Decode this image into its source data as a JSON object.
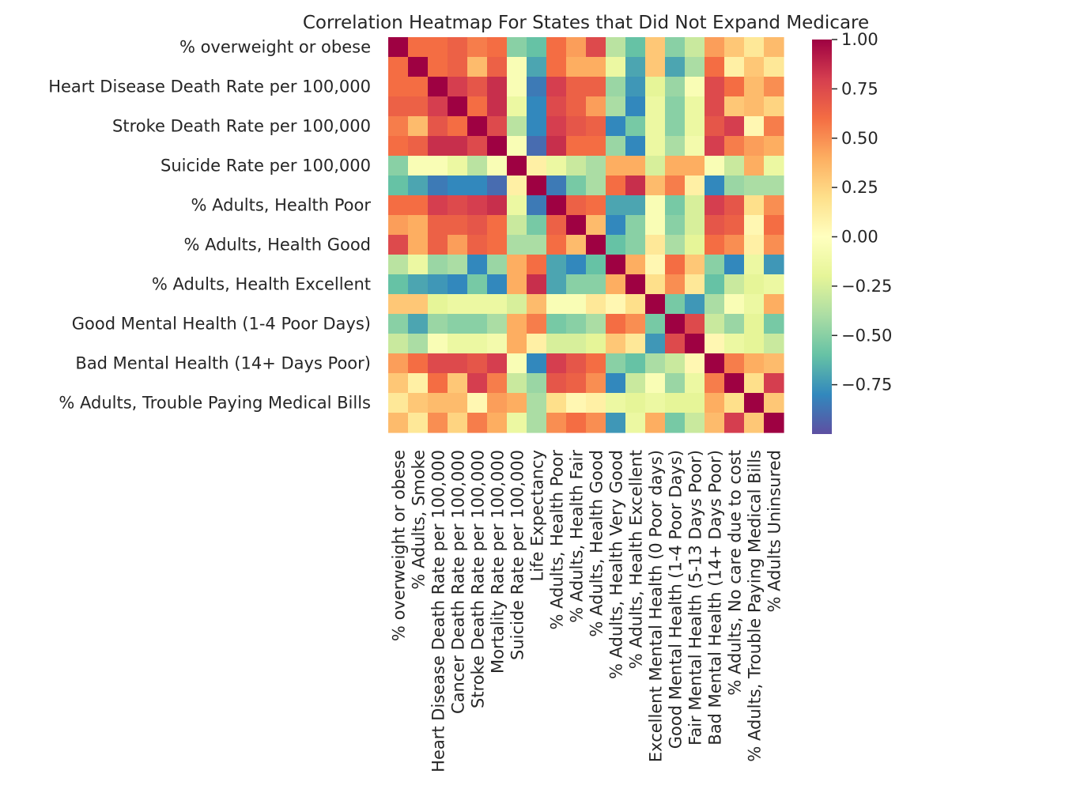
{
  "chart_data": {
    "type": "heatmap",
    "title": "Correlation Heatmap For States that Did Not Expand Medicare",
    "variables": [
      "% overweight or obese",
      "% Adults, Smoke",
      "Heart Disease Death Rate per 100,000",
      "Cancer Death Rate per 100,000",
      "Stroke Death Rate per 100,000",
      "Mortality Rate per 100,000",
      "Suicide Rate per 100,000",
      "Life Expectancy",
      "% Adults, Health Poor",
      "% Adults, Health Fair",
      "% Adults, Health Good",
      "% Adults, Health Very Good",
      "% Adults, Health Excellent",
      "Excellent Mental Health (0 Poor days)",
      "Good Mental Health (1-4 Poor Days)",
      "Fair Mental Health (5-13 Days Poor)",
      "Bad Mental Health (14+ Days Poor)",
      "% Adults, No care due to cost",
      "% Adults, Trouble Paying Medical Bills",
      "% Adults Uninsured"
    ],
    "y_tick_labels": [
      "% overweight or obese",
      "Heart Disease Death Rate per 100,000",
      "Stroke Death Rate per 100,000",
      "Suicide Rate per 100,000",
      "% Adults, Health Poor",
      "% Adults, Health Good",
      "% Adults, Health Excellent",
      "Good Mental Health (1-4 Poor Days)",
      "Bad Mental Health (14+ Days Poor)",
      "% Adults, Trouble Paying Medical Bills"
    ],
    "y_tick_rows": [
      0,
      2,
      4,
      6,
      8,
      10,
      12,
      14,
      16,
      18
    ],
    "matrix": [
      [
        1.0,
        0.6,
        0.6,
        0.65,
        0.55,
        0.6,
        -0.5,
        -0.6,
        0.6,
        0.45,
        0.75,
        -0.35,
        -0.6,
        0.3,
        -0.5,
        -0.3,
        0.45,
        0.3,
        0.15,
        0.35
      ],
      [
        0.6,
        1.0,
        0.6,
        0.65,
        0.35,
        0.65,
        -0.05,
        -0.7,
        0.6,
        0.4,
        0.4,
        -0.15,
        -0.7,
        0.3,
        -0.7,
        -0.4,
        0.6,
        0.1,
        0.3,
        0.15
      ],
      [
        0.6,
        0.6,
        1.0,
        0.8,
        0.7,
        0.85,
        -0.05,
        -0.85,
        0.8,
        0.65,
        0.65,
        -0.45,
        -0.75,
        -0.2,
        -0.45,
        -0.05,
        0.75,
        0.6,
        0.35,
        0.5
      ],
      [
        0.65,
        0.65,
        0.8,
        1.0,
        0.6,
        0.85,
        -0.15,
        -0.8,
        0.75,
        0.65,
        0.45,
        -0.4,
        -0.8,
        -0.15,
        -0.5,
        -0.15,
        0.75,
        0.3,
        0.35,
        0.25
      ],
      [
        0.55,
        0.35,
        0.7,
        0.6,
        1.0,
        0.75,
        -0.35,
        -0.8,
        0.8,
        0.7,
        0.65,
        -0.8,
        -0.55,
        -0.15,
        -0.5,
        -0.15,
        0.7,
        0.8,
        0.05,
        0.55
      ],
      [
        0.6,
        0.65,
        0.85,
        0.85,
        0.75,
        1.0,
        -0.05,
        -0.9,
        0.85,
        0.6,
        0.6,
        -0.45,
        -0.8,
        -0.15,
        -0.4,
        -0.1,
        0.8,
        0.55,
        0.45,
        0.4
      ],
      [
        -0.5,
        -0.05,
        -0.05,
        -0.15,
        -0.35,
        -0.05,
        1.0,
        0.1,
        -0.15,
        -0.3,
        -0.4,
        0.4,
        0.4,
        -0.25,
        0.4,
        0.4,
        -0.05,
        -0.3,
        0.4,
        -0.15
      ],
      [
        -0.6,
        -0.7,
        -0.85,
        -0.8,
        -0.8,
        -0.9,
        0.1,
        1.0,
        -0.85,
        -0.55,
        -0.4,
        0.6,
        0.85,
        0.35,
        0.55,
        0.1,
        -0.8,
        -0.45,
        -0.4,
        -0.4
      ],
      [
        0.6,
        0.6,
        0.8,
        0.75,
        0.8,
        0.85,
        -0.15,
        -0.85,
        1.0,
        0.65,
        0.6,
        -0.7,
        -0.7,
        -0.05,
        -0.55,
        -0.25,
        0.8,
        0.7,
        0.2,
        0.5
      ],
      [
        0.45,
        0.4,
        0.65,
        0.65,
        0.7,
        0.6,
        -0.3,
        -0.55,
        0.65,
        1.0,
        0.35,
        -0.8,
        -0.5,
        -0.05,
        -0.5,
        -0.25,
        0.7,
        0.65,
        0.05,
        0.6
      ],
      [
        0.75,
        0.4,
        0.65,
        0.45,
        0.65,
        0.6,
        -0.4,
        -0.4,
        0.6,
        0.35,
        1.0,
        -0.6,
        -0.5,
        0.15,
        -0.4,
        -0.2,
        0.6,
        0.5,
        0.1,
        0.5
      ],
      [
        -0.35,
        -0.15,
        -0.45,
        -0.4,
        -0.8,
        -0.45,
        0.4,
        0.6,
        -0.7,
        -0.8,
        -0.6,
        1.0,
        0.4,
        0.05,
        0.6,
        0.3,
        -0.5,
        -0.8,
        -0.15,
        -0.75
      ],
      [
        -0.6,
        -0.7,
        -0.75,
        -0.8,
        -0.55,
        -0.8,
        0.4,
        0.85,
        -0.7,
        -0.5,
        -0.5,
        0.4,
        1.0,
        0.2,
        0.5,
        0.15,
        -0.6,
        -0.3,
        -0.2,
        -0.15
      ],
      [
        0.3,
        0.3,
        -0.2,
        -0.15,
        -0.15,
        -0.15,
        -0.25,
        0.35,
        -0.05,
        -0.05,
        0.15,
        0.05,
        0.2,
        1.0,
        -0.55,
        -0.75,
        -0.4,
        -0.05,
        -0.15,
        0.4
      ],
      [
        -0.5,
        -0.7,
        -0.45,
        -0.5,
        -0.5,
        -0.4,
        0.4,
        0.55,
        -0.55,
        -0.5,
        -0.4,
        0.6,
        0.5,
        -0.55,
        1.0,
        0.75,
        -0.3,
        -0.45,
        -0.2,
        -0.55
      ],
      [
        -0.3,
        -0.4,
        -0.05,
        -0.15,
        -0.15,
        -0.1,
        0.4,
        0.1,
        -0.25,
        -0.25,
        -0.2,
        0.3,
        0.15,
        -0.75,
        0.75,
        1.0,
        0.05,
        -0.15,
        -0.2,
        -0.3
      ],
      [
        0.45,
        0.6,
        0.75,
        0.75,
        0.7,
        0.8,
        -0.05,
        -0.8,
        0.8,
        0.7,
        0.6,
        -0.5,
        -0.6,
        -0.4,
        -0.3,
        0.05,
        1.0,
        0.55,
        0.4,
        0.35
      ],
      [
        0.3,
        0.1,
        0.6,
        0.3,
        0.8,
        0.55,
        -0.3,
        -0.45,
        0.7,
        0.65,
        0.5,
        -0.8,
        -0.3,
        -0.05,
        -0.45,
        -0.15,
        0.55,
        1.0,
        0.2,
        0.8
      ],
      [
        0.15,
        0.3,
        0.35,
        0.35,
        0.05,
        0.45,
        0.4,
        -0.4,
        0.2,
        0.05,
        0.1,
        -0.15,
        -0.2,
        -0.15,
        -0.2,
        -0.2,
        0.4,
        0.2,
        1.0,
        0.3
      ],
      [
        0.35,
        0.15,
        0.5,
        0.25,
        0.55,
        0.4,
        -0.15,
        -0.4,
        0.5,
        0.6,
        0.5,
        -0.75,
        -0.15,
        0.4,
        -0.55,
        -0.3,
        0.35,
        0.8,
        0.3,
        1.0
      ]
    ],
    "colormap": "Spectral_r",
    "colormap_stops": [
      "#5e4fa2",
      "#3288bd",
      "#66c2a5",
      "#abdda4",
      "#e6f598",
      "#ffffbf",
      "#fee08b",
      "#fdae61",
      "#f46d43",
      "#d53e4f",
      "#9e0142"
    ],
    "vmin": -1.0,
    "vmax": 1.0,
    "colorbar_ticks": [
      1.0,
      0.75,
      0.5,
      0.25,
      0.0,
      -0.25,
      -0.5,
      -0.75
    ],
    "colorbar_tick_labels": [
      "1.00",
      "0.75",
      "0.50",
      "0.25",
      "0.00",
      "−0.25",
      "−0.50",
      "−0.75"
    ],
    "grid": false,
    "legend": "colorbar-right"
  }
}
